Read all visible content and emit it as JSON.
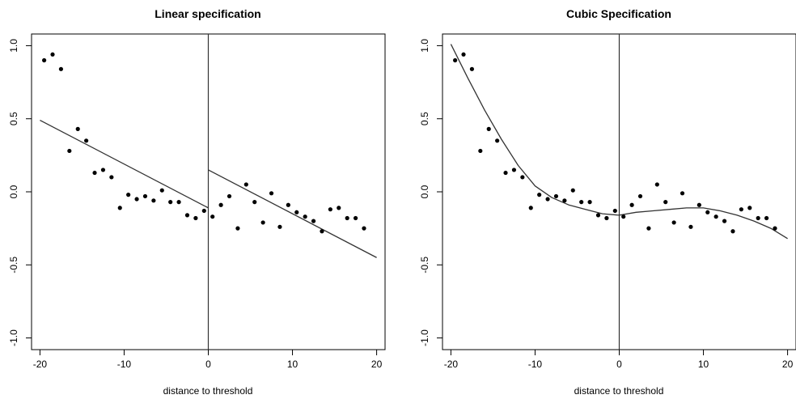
{
  "chart_data": [
    {
      "type": "scatter",
      "title": "Linear specification",
      "xlabel": "distance to threshold",
      "ylabel": "",
      "xlim": [
        -21,
        21
      ],
      "ylim": [
        -1.08,
        1.08
      ],
      "xticks": [
        "-20",
        "-10",
        "0",
        "10",
        "20"
      ],
      "yticks": [
        "-1.0",
        "-0.5",
        "0.0",
        "0.5",
        "1.0"
      ],
      "xtick_values": [
        -20,
        -10,
        0,
        10,
        20
      ],
      "ytick_values": [
        -1.0,
        -0.5,
        0.0,
        0.5,
        1.0
      ],
      "threshold_x": 0,
      "grid": false,
      "points": {
        "x": [
          -19.5,
          -18.5,
          -17.5,
          -16.5,
          -15.5,
          -14.5,
          -13.5,
          -12.5,
          -11.5,
          -10.5,
          -9.5,
          -8.5,
          -7.5,
          -6.5,
          -5.5,
          -4.5,
          -3.5,
          -2.5,
          -1.5,
          -0.5,
          0.5,
          1.5,
          2.5,
          3.5,
          4.5,
          5.5,
          6.5,
          7.5,
          8.5,
          9.5,
          10.5,
          11.5,
          12.5,
          13.5,
          14.5,
          15.5,
          16.5,
          17.5,
          18.5
        ],
        "y": [
          0.9,
          0.94,
          0.84,
          0.28,
          0.43,
          0.35,
          0.13,
          0.15,
          0.1,
          -0.11,
          -0.02,
          -0.05,
          -0.03,
          -0.06,
          0.01,
          -0.07,
          -0.07,
          -0.16,
          -0.18,
          -0.13,
          -0.17,
          -0.09,
          -0.03,
          -0.25,
          0.05,
          -0.07,
          -0.21,
          -0.01,
          -0.24,
          -0.09,
          -0.14,
          -0.17,
          -0.2,
          -0.27,
          -0.12,
          -0.11,
          -0.18,
          -0.18,
          -0.25
        ]
      },
      "fit": {
        "kind": "linear",
        "left": {
          "x": [
            -20,
            0
          ],
          "y": [
            0.49,
            -0.11
          ]
        },
        "right": {
          "x": [
            0,
            20
          ],
          "y": [
            0.15,
            -0.45
          ]
        }
      }
    },
    {
      "type": "scatter",
      "title": "Cubic Specification",
      "xlabel": "distance to threshold",
      "ylabel": "",
      "xlim": [
        -21,
        21
      ],
      "ylim": [
        -1.08,
        1.08
      ],
      "xticks": [
        "-20",
        "-10",
        "0",
        "10",
        "20"
      ],
      "yticks": [
        "-1.0",
        "-0.5",
        "0.0",
        "0.5",
        "1.0"
      ],
      "xtick_values": [
        -20,
        -10,
        0,
        10,
        20
      ],
      "ytick_values": [
        -1.0,
        -0.5,
        0.0,
        0.5,
        1.0
      ],
      "threshold_x": 0,
      "grid": false,
      "points": {
        "x": [
          -19.5,
          -18.5,
          -17.5,
          -16.5,
          -15.5,
          -14.5,
          -13.5,
          -12.5,
          -11.5,
          -10.5,
          -9.5,
          -8.5,
          -7.5,
          -6.5,
          -5.5,
          -4.5,
          -3.5,
          -2.5,
          -1.5,
          -0.5,
          0.5,
          1.5,
          2.5,
          3.5,
          4.5,
          5.5,
          6.5,
          7.5,
          8.5,
          9.5,
          10.5,
          11.5,
          12.5,
          13.5,
          14.5,
          15.5,
          16.5,
          17.5,
          18.5
        ],
        "y": [
          0.9,
          0.94,
          0.84,
          0.28,
          0.43,
          0.35,
          0.13,
          0.15,
          0.1,
          -0.11,
          -0.02,
          -0.05,
          -0.03,
          -0.06,
          0.01,
          -0.07,
          -0.07,
          -0.16,
          -0.18,
          -0.13,
          -0.17,
          -0.09,
          -0.03,
          -0.25,
          0.05,
          -0.07,
          -0.21,
          -0.01,
          -0.24,
          -0.09,
          -0.14,
          -0.17,
          -0.2,
          -0.27,
          -0.12,
          -0.11,
          -0.18,
          -0.18,
          -0.25
        ]
      },
      "fit": {
        "kind": "cubic",
        "curve": {
          "x": [
            -20,
            -18,
            -16,
            -14,
            -12,
            -10,
            -8,
            -6,
            -4,
            -2,
            0,
            2,
            4,
            6,
            8,
            10,
            12,
            14,
            16,
            18,
            20
          ],
          "y": [
            1.01,
            0.78,
            0.56,
            0.36,
            0.18,
            0.04,
            -0.04,
            -0.09,
            -0.12,
            -0.15,
            -0.16,
            -0.14,
            -0.13,
            -0.12,
            -0.11,
            -0.11,
            -0.13,
            -0.16,
            -0.2,
            -0.25,
            -0.32
          ]
        }
      }
    }
  ]
}
